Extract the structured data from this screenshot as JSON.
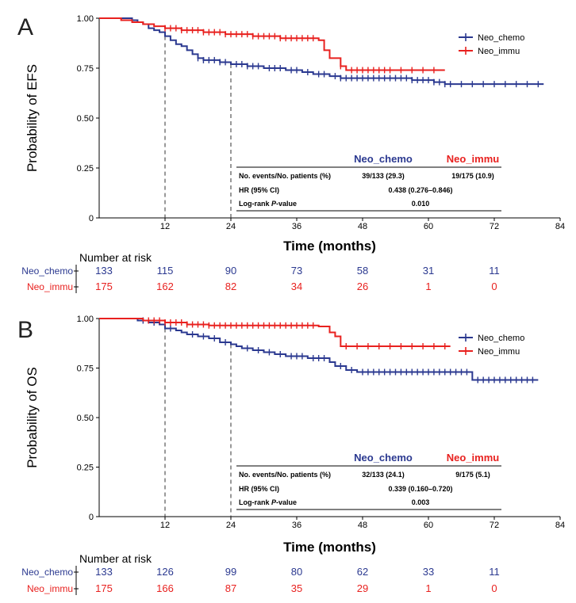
{
  "colors": {
    "chemo": "#2B3990",
    "immu": "#E8211F",
    "axis": "#000000",
    "panel_label": "#222222"
  },
  "chart_data": [
    {
      "type": "line",
      "subtype": "kaplan-meier",
      "panel_label": "A",
      "ylabel": "Probability of EFS",
      "xlabel": "Time (months)",
      "xlim": [
        0,
        84
      ],
      "ylim": [
        0,
        1
      ],
      "x_ticks": [
        12,
        24,
        36,
        48,
        60,
        72,
        84
      ],
      "x_tick_labels": [
        "12",
        "24",
        "36",
        "48",
        "60",
        "72",
        "84"
      ],
      "y_ticks": [
        0,
        0.25,
        0.5,
        0.75,
        1.0
      ],
      "y_tick_labels": [
        "0",
        "0.25",
        "0.50",
        "0.75",
        "1.00"
      ],
      "reference_lines_x": [
        12,
        24
      ],
      "legend": {
        "position": "top-right",
        "entries": [
          "Neo_chemo",
          "Neo_immu"
        ]
      },
      "series": [
        {
          "name": "Neo_chemo",
          "color_key": "chemo",
          "steps": [
            [
              0,
              1.0
            ],
            [
              6,
              0.99
            ],
            [
              7,
              0.98
            ],
            [
              8,
              0.97
            ],
            [
              9,
              0.95
            ],
            [
              10,
              0.94
            ],
            [
              11,
              0.93
            ],
            [
              12,
              0.91
            ],
            [
              13,
              0.89
            ],
            [
              14,
              0.87
            ],
            [
              15,
              0.86
            ],
            [
              16,
              0.84
            ],
            [
              17,
              0.82
            ],
            [
              18,
              0.8
            ],
            [
              19,
              0.79
            ],
            [
              22,
              0.78
            ],
            [
              24,
              0.77
            ],
            [
              27,
              0.76
            ],
            [
              30,
              0.75
            ],
            [
              34,
              0.74
            ],
            [
              37,
              0.73
            ],
            [
              39,
              0.72
            ],
            [
              42,
              0.71
            ],
            [
              44,
              0.7
            ],
            [
              57,
              0.69
            ],
            [
              61,
              0.68
            ],
            [
              63,
              0.67
            ],
            [
              81,
              0.67
            ]
          ],
          "censors": [
            18,
            19,
            20,
            21,
            22,
            23,
            25,
            26,
            27,
            28,
            29,
            31,
            32,
            33,
            35,
            36,
            38,
            40,
            41,
            43,
            44,
            45,
            46,
            47,
            48,
            49,
            50,
            51,
            52,
            53,
            54,
            55,
            56,
            57,
            58,
            59,
            60,
            61,
            62,
            63,
            64,
            66,
            68,
            70,
            72,
            74,
            76,
            78,
            80
          ]
        },
        {
          "name": "Neo_immu",
          "color_key": "immu",
          "steps": [
            [
              0,
              1.0
            ],
            [
              4,
              0.99
            ],
            [
              6,
              0.98
            ],
            [
              8,
              0.97
            ],
            [
              10,
              0.96
            ],
            [
              12,
              0.95
            ],
            [
              15,
              0.94
            ],
            [
              19,
              0.93
            ],
            [
              23,
              0.92
            ],
            [
              28,
              0.91
            ],
            [
              33,
              0.9
            ],
            [
              40,
              0.89
            ],
            [
              41,
              0.84
            ],
            [
              42,
              0.8
            ],
            [
              44,
              0.76
            ],
            [
              45,
              0.74
            ],
            [
              63,
              0.74
            ]
          ],
          "censors": [
            12,
            13,
            14,
            15,
            16,
            17,
            18,
            19,
            20,
            21,
            22,
            23,
            24,
            25,
            26,
            27,
            28,
            29,
            30,
            31,
            32,
            33,
            34,
            35,
            36,
            37,
            38,
            39,
            44,
            46,
            47,
            48,
            49,
            50,
            51,
            52,
            53,
            55,
            57,
            59,
            61
          ]
        }
      ],
      "stats_table": {
        "col1_header": "Neo_chemo",
        "col2_header": "Neo_immu",
        "rows": [
          {
            "label": "No. events/No. patients (%)",
            "col1": "39/133 (29.3)",
            "col2": "19/175 (10.9)"
          },
          {
            "label": "HR (95% CI)",
            "value": "0.438 (0.276–0.846)"
          },
          {
            "label_pre": "Log-rank ",
            "label_italic": "P",
            "label_post": "-value",
            "value": "0.010"
          }
        ]
      },
      "risk_table": {
        "title": "Number at risk",
        "rows": [
          {
            "name": "Neo_chemo",
            "color_key": "chemo",
            "values": [
              133,
              115,
              90,
              73,
              58,
              31,
              11
            ]
          },
          {
            "name": "Neo_immu",
            "color_key": "immu",
            "values": [
              175,
              162,
              82,
              34,
              26,
              1,
              0
            ]
          }
        ]
      }
    },
    {
      "type": "line",
      "subtype": "kaplan-meier",
      "panel_label": "B",
      "ylabel": "Probability of OS",
      "xlabel": "Time (months)",
      "xlim": [
        0,
        84
      ],
      "ylim": [
        0,
        1
      ],
      "x_ticks": [
        12,
        24,
        36,
        48,
        60,
        72,
        84
      ],
      "x_tick_labels": [
        "12",
        "24",
        "36",
        "48",
        "60",
        "72",
        "84"
      ],
      "y_ticks": [
        0,
        0.25,
        0.5,
        0.75,
        1.0
      ],
      "y_tick_labels": [
        "0",
        "0.25",
        "0.50",
        "0.75",
        "1.00"
      ],
      "reference_lines_x": [
        12,
        24
      ],
      "legend": {
        "position": "top-right",
        "entries": [
          "Neo_chemo",
          "Neo_immu"
        ]
      },
      "series": [
        {
          "name": "Neo_chemo",
          "color_key": "chemo",
          "steps": [
            [
              0,
              1.0
            ],
            [
              7,
              0.99
            ],
            [
              9,
              0.98
            ],
            [
              11,
              0.97
            ],
            [
              12,
              0.95
            ],
            [
              14,
              0.94
            ],
            [
              15,
              0.93
            ],
            [
              16,
              0.92
            ],
            [
              18,
              0.91
            ],
            [
              20,
              0.9
            ],
            [
              22,
              0.88
            ],
            [
              24,
              0.87
            ],
            [
              25,
              0.86
            ],
            [
              26,
              0.85
            ],
            [
              28,
              0.84
            ],
            [
              30,
              0.83
            ],
            [
              32,
              0.82
            ],
            [
              34,
              0.81
            ],
            [
              38,
              0.8
            ],
            [
              42,
              0.78
            ],
            [
              43,
              0.76
            ],
            [
              45,
              0.74
            ],
            [
              47,
              0.73
            ],
            [
              67,
              0.73
            ],
            [
              68,
              0.69
            ],
            [
              80,
              0.69
            ]
          ],
          "censors": [
            8,
            10,
            13,
            17,
            19,
            21,
            23,
            27,
            29,
            31,
            33,
            35,
            36,
            37,
            39,
            40,
            41,
            44,
            46,
            48,
            49,
            50,
            51,
            52,
            53,
            54,
            55,
            56,
            57,
            58,
            59,
            60,
            61,
            62,
            63,
            64,
            65,
            66,
            67,
            69,
            70,
            71,
            72,
            73,
            74,
            75,
            76,
            77,
            78,
            79
          ]
        },
        {
          "name": "Neo_immu",
          "color_key": "immu",
          "steps": [
            [
              0,
              1.0
            ],
            [
              8,
              0.99
            ],
            [
              12,
              0.98
            ],
            [
              16,
              0.97
            ],
            [
              20,
              0.965
            ],
            [
              40,
              0.96
            ],
            [
              42,
              0.93
            ],
            [
              43,
              0.91
            ],
            [
              44,
              0.86
            ],
            [
              64,
              0.86
            ]
          ],
          "censors": [
            9,
            10,
            11,
            12,
            13,
            14,
            15,
            16,
            17,
            18,
            19,
            20,
            21,
            22,
            23,
            24,
            25,
            26,
            27,
            28,
            29,
            30,
            31,
            32,
            33,
            34,
            35,
            36,
            37,
            38,
            39,
            45,
            47,
            49,
            51,
            53,
            55,
            57,
            59,
            61,
            63
          ]
        }
      ],
      "stats_table": {
        "col1_header": "Neo_chemo",
        "col2_header": "Neo_immu",
        "rows": [
          {
            "label": "No. events/No. patients (%)",
            "col1": "32/133 (24.1)",
            "col2": "9/175 (5.1)"
          },
          {
            "label": "HR (95% CI)",
            "value": "0.339 (0.160–0.720)"
          },
          {
            "label_pre": "Log-rank ",
            "label_italic": "P",
            "label_post": "-value",
            "value": "0.003"
          }
        ]
      },
      "risk_table": {
        "title": "Number at risk",
        "rows": [
          {
            "name": "Neo_chemo",
            "color_key": "chemo",
            "values": [
              133,
              126,
              99,
              80,
              62,
              33,
              11
            ]
          },
          {
            "name": "Neo_immu",
            "color_key": "immu",
            "values": [
              175,
              166,
              87,
              35,
              29,
              1,
              0
            ]
          }
        ]
      }
    }
  ]
}
